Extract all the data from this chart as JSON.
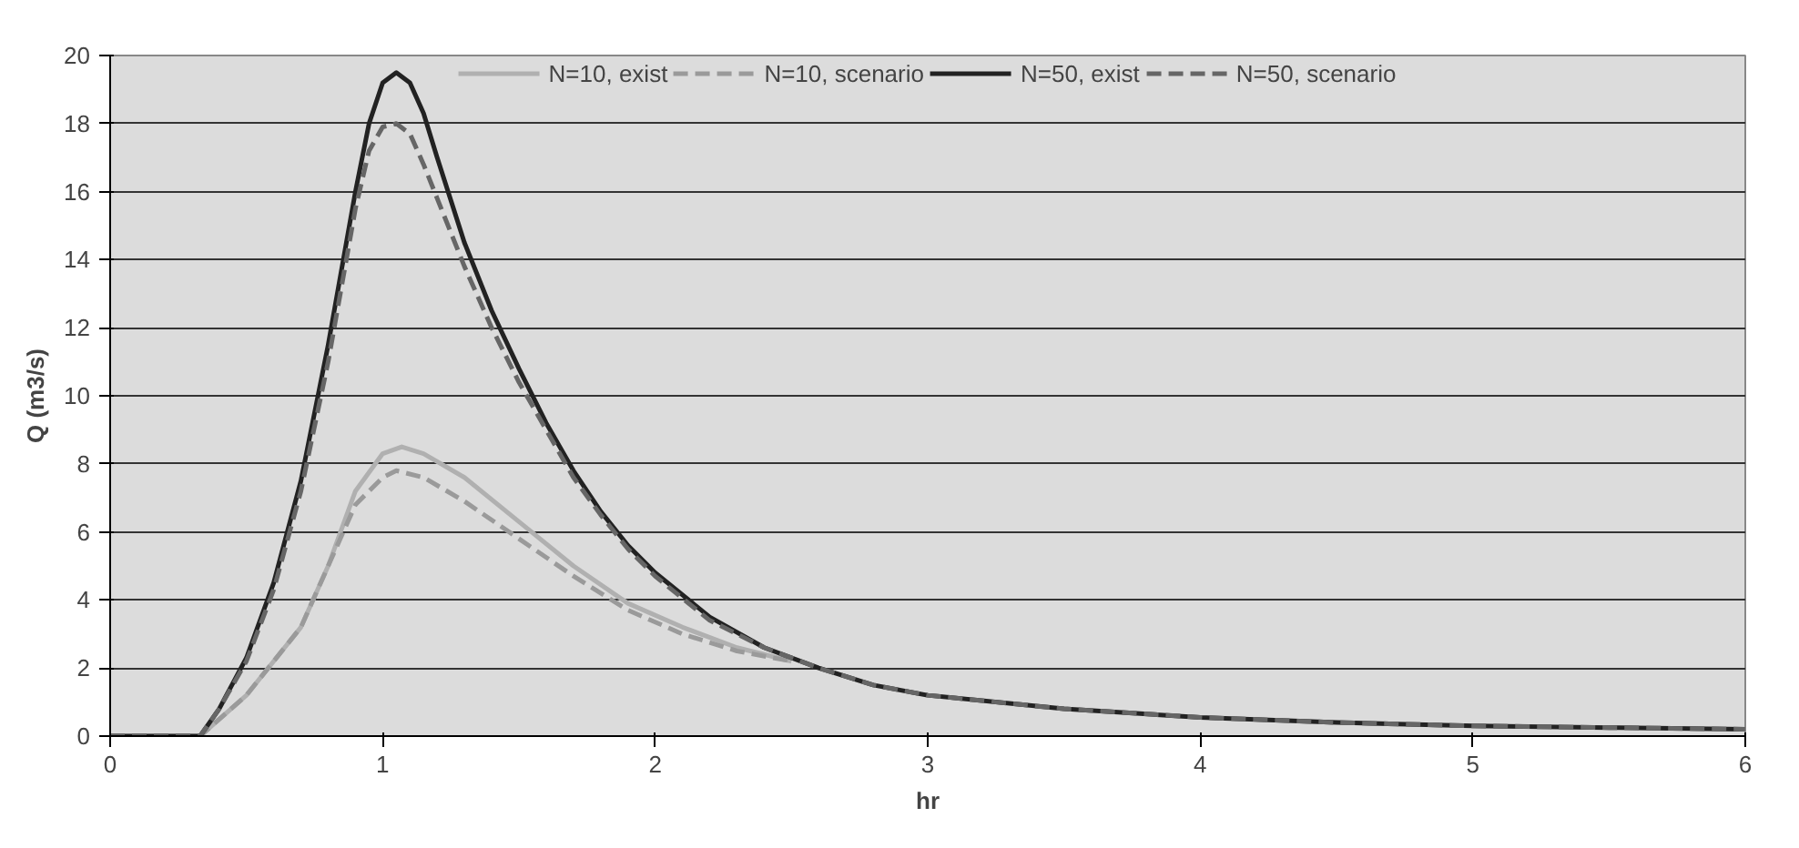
{
  "chart_data": {
    "type": "line",
    "xlabel": "hr",
    "ylabel": "Q (m3/s)",
    "xlim": [
      0,
      6
    ],
    "xticks": [
      0,
      1,
      2,
      3,
      4,
      5,
      6
    ],
    "ylim": [
      0,
      20
    ],
    "yticks": [
      0,
      2,
      4,
      6,
      8,
      10,
      12,
      14,
      16,
      18,
      20
    ],
    "grid": "y",
    "legend": "top",
    "marker": "none",
    "series": [
      {
        "name": "N=10, exist",
        "color": "#b0b0b0",
        "line_style": "solid",
        "x": [
          0,
          0.33,
          0.5,
          0.6,
          0.7,
          0.8,
          0.9,
          1.0,
          1.07,
          1.15,
          1.3,
          1.5,
          1.7,
          1.9,
          2.1,
          2.3,
          2.5
        ],
        "values": [
          0,
          0,
          1.2,
          2.2,
          3.2,
          5,
          7.2,
          8.3,
          8.5,
          8.3,
          7.6,
          6.3,
          5,
          3.9,
          3.2,
          2.6,
          2.2
        ]
      },
      {
        "name": "N=10, scenario",
        "color": "#9a9a9a",
        "line_style": "dashed",
        "x": [
          0,
          0.33,
          0.5,
          0.6,
          0.7,
          0.8,
          0.9,
          1.0,
          1.05,
          1.15,
          1.3,
          1.5,
          1.7,
          1.9,
          2.1,
          2.3,
          2.5
        ],
        "values": [
          0,
          0,
          1.2,
          2.2,
          3.2,
          5,
          6.8,
          7.6,
          7.8,
          7.6,
          6.9,
          5.8,
          4.7,
          3.7,
          3.0,
          2.5,
          2.2
        ]
      },
      {
        "name": "N=50, exist",
        "color": "#222222",
        "line_style": "solid",
        "x": [
          0,
          0.33,
          0.4,
          0.5,
          0.6,
          0.7,
          0.8,
          0.9,
          0.95,
          1.0,
          1.05,
          1.1,
          1.15,
          1.2,
          1.3,
          1.4,
          1.5,
          1.6,
          1.7,
          1.8,
          1.9,
          2.0,
          2.2,
          2.4,
          2.6,
          2.8,
          3.0,
          3.5,
          4,
          4.5,
          5,
          5.5,
          6
        ],
        "values": [
          0,
          0,
          0.8,
          2.3,
          4.5,
          7.5,
          11.5,
          16,
          18,
          19.2,
          19.5,
          19.2,
          18.3,
          17,
          14.5,
          12.5,
          10.8,
          9.2,
          7.8,
          6.6,
          5.6,
          4.8,
          3.5,
          2.6,
          2.0,
          1.5,
          1.2,
          0.8,
          0.55,
          0.4,
          0.3,
          0.25,
          0.2
        ]
      },
      {
        "name": "N=50, scenario",
        "color": "#666666",
        "line_style": "dashed",
        "x": [
          0,
          0.33,
          0.4,
          0.5,
          0.6,
          0.7,
          0.8,
          0.9,
          0.95,
          1.0,
          1.05,
          1.1,
          1.15,
          1.2,
          1.3,
          1.4,
          1.5,
          1.6,
          1.7,
          1.8,
          1.9,
          2.0,
          2.2,
          2.4,
          2.6,
          2.8,
          3.0,
          3.5,
          4,
          4.5,
          5,
          5.5,
          6
        ],
        "values": [
          0,
          0,
          0.8,
          2.2,
          4.3,
          7.2,
          11,
          15.5,
          17.2,
          17.9,
          18,
          17.7,
          16.8,
          15.8,
          13.8,
          12,
          10.4,
          9.0,
          7.6,
          6.5,
          5.5,
          4.7,
          3.4,
          2.6,
          2.0,
          1.5,
          1.2,
          0.8,
          0.55,
          0.4,
          0.3,
          0.25,
          0.2
        ]
      }
    ]
  }
}
